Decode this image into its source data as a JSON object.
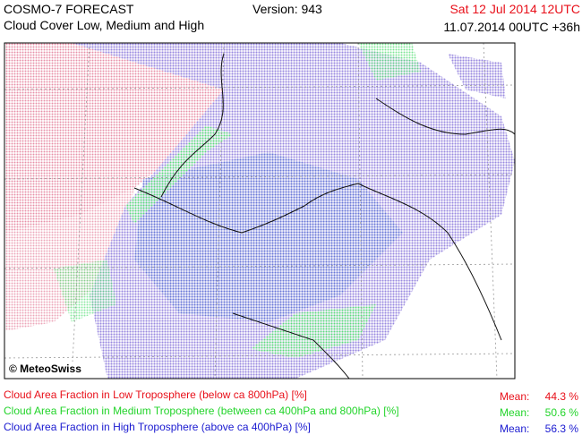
{
  "header": {
    "product": "COSMO-7 FORECAST",
    "subtitle": "Cloud Cover Low, Medium and High",
    "version": "Version: 943",
    "valid_time": "Sat 12 Jul 2014 12UTC",
    "run": "11.07.2014 00UTC +36h"
  },
  "map": {
    "credit": "© MeteoSwiss"
  },
  "legend": [
    {
      "label": "Cloud Area Fraction in Low Troposphere (below ca 800hPa) [%]",
      "mean_label": "Mean:",
      "mean": "44.3 %",
      "color": "#e8101a"
    },
    {
      "label": "Cloud Area Fraction in Medium Troposphere (between ca 400hPa and 800hPa) [%]",
      "mean_label": "Mean:",
      "mean": "50.6 %",
      "color": "#22d42a"
    },
    {
      "label": "Cloud Area Fraction in High Troposphere (above ca 400hPa) [%]",
      "mean_label": "Mean:",
      "mean": "56.3 %",
      "color": "#1a1ad0"
    }
  ]
}
